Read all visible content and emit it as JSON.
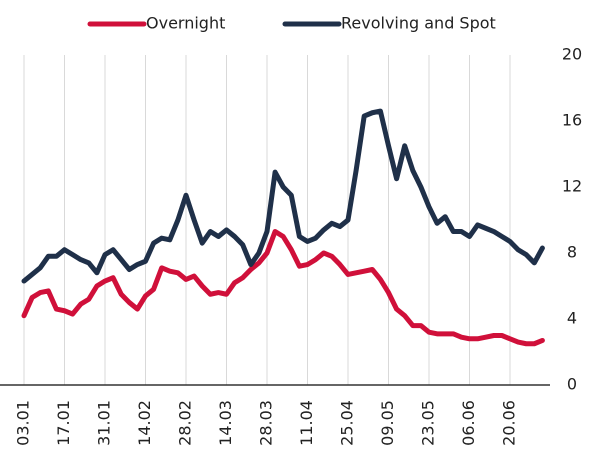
{
  "chart_data": {
    "type": "line",
    "categories": [
      "03.01",
      null,
      null,
      null,
      null,
      "17.01",
      null,
      null,
      null,
      null,
      "31.01",
      null,
      null,
      null,
      null,
      "14.02",
      null,
      null,
      null,
      null,
      "28.02",
      null,
      null,
      null,
      null,
      "14.03",
      null,
      null,
      null,
      null,
      "28.03",
      null,
      null,
      null,
      null,
      "11.04",
      null,
      null,
      null,
      null,
      "25.04",
      null,
      null,
      null,
      null,
      "09.05",
      null,
      null,
      null,
      null,
      "23.05",
      null,
      null,
      null,
      null,
      "06.06",
      null,
      null,
      null,
      null,
      "20.06",
      null,
      null,
      null,
      null
    ],
    "series": [
      {
        "name": "Overnight",
        "color": "#d0103a",
        "values": [
          4.2,
          5.3,
          5.6,
          5.7,
          4.6,
          4.5,
          4.3,
          4.9,
          5.2,
          6.0,
          6.3,
          6.5,
          5.5,
          5.0,
          4.6,
          5.4,
          5.8,
          7.1,
          6.9,
          6.8,
          6.4,
          6.6,
          6.0,
          5.5,
          5.6,
          5.5,
          6.2,
          6.5,
          7.0,
          7.4,
          8.0,
          9.3,
          9.0,
          8.2,
          7.2,
          7.3,
          7.6,
          8.0,
          7.8,
          7.3,
          6.7,
          6.8,
          6.9,
          7.0,
          6.4,
          5.6,
          4.6,
          4.2,
          3.6,
          3.6,
          3.2,
          3.1,
          3.1,
          3.1,
          2.9,
          2.8,
          2.8,
          2.9,
          3.0,
          3.0,
          2.8,
          2.6,
          2.5,
          2.5,
          2.7
        ]
      },
      {
        "name": "Revolving and Spot",
        "color": "#1f3049",
        "values": [
          6.3,
          6.7,
          7.1,
          7.8,
          7.8,
          8.2,
          7.9,
          7.6,
          7.4,
          6.8,
          7.9,
          8.2,
          7.6,
          7.0,
          7.3,
          7.5,
          8.6,
          8.9,
          8.8,
          10.0,
          11.5,
          10.0,
          8.6,
          9.3,
          9.0,
          9.4,
          9.0,
          8.5,
          7.3,
          8.0,
          9.3,
          12.9,
          12.0,
          11.5,
          9.0,
          8.7,
          8.9,
          9.4,
          9.8,
          9.6,
          10.0,
          13.0,
          16.3,
          16.5,
          16.6,
          14.5,
          12.5,
          14.5,
          13.0,
          12.0,
          10.8,
          9.8,
          10.2,
          9.3,
          9.3,
          9.0,
          9.7,
          9.5,
          9.3,
          9.0,
          8.7,
          8.2,
          7.9,
          7.4,
          8.3
        ]
      }
    ],
    "ylim": [
      0,
      20
    ],
    "yticks": [
      0,
      4,
      8,
      12,
      16,
      20
    ],
    "y_axis_side": "right",
    "grid": "x",
    "legend": "top"
  }
}
